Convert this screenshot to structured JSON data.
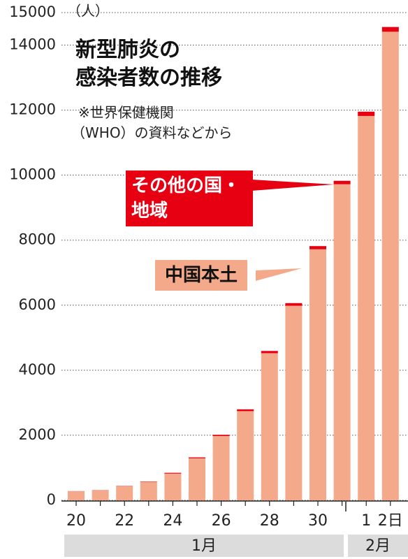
{
  "chart_data": {
    "type": "stacked_bar",
    "title": [
      "新型肺炎の",
      "感染者数の推移"
    ],
    "note": [
      "※世界保健機関",
      "（WHO）の資料などから"
    ],
    "y_unit": "（人）",
    "categories": [
      "20",
      null,
      "22",
      null,
      "24",
      null,
      "26",
      null,
      "28",
      null,
      "30",
      null,
      "1",
      "2日"
    ],
    "months": [
      "1月",
      "2月"
    ],
    "series": [
      {
        "name": "中国本土",
        "color": "#f4a98a",
        "values": [
          278,
          303,
          431,
          571,
          821,
          1291,
          1977,
          2742,
          4525,
          5983,
          7720,
          9720,
          11821,
          14411
        ]
      },
      {
        "name": "その他の国・地域",
        "color": "#e60012",
        "values": [
          4,
          7,
          9,
          10,
          25,
          29,
          37,
          56,
          68,
          82,
          98,
          106,
          132,
          146
        ]
      }
    ],
    "ylim": [
      0,
      15000
    ],
    "yticks": [
      0,
      2000,
      4000,
      6000,
      8000,
      10000,
      12000,
      14000,
      15000
    ],
    "grid": true
  }
}
